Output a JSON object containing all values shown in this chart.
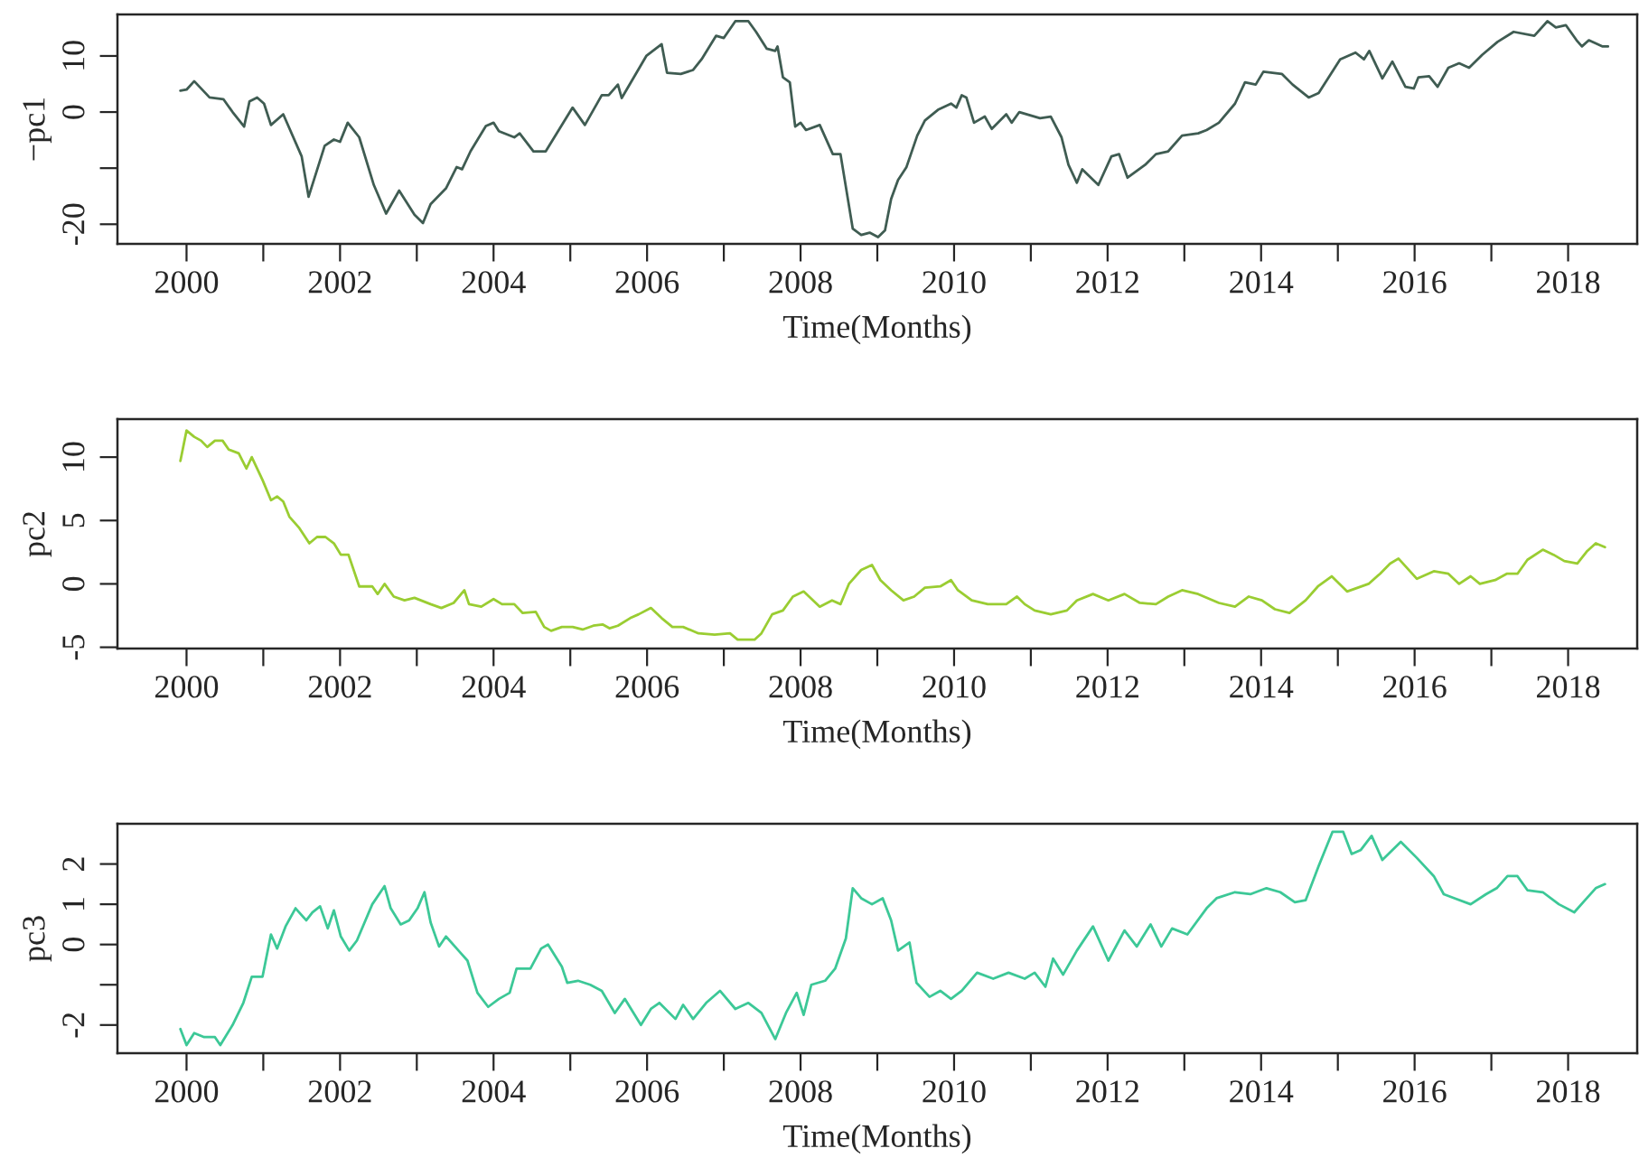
{
  "chart_data": [
    {
      "type": "line",
      "xlabel": "Time(Months)",
      "ylabel": "−pc1",
      "grid": false,
      "xlim": [
        1999.1,
        2018.9
      ],
      "ylim": [
        -23.5,
        17.4
      ],
      "xticks": [
        2000,
        {
          "value": 2001,
          "label": null
        },
        2002,
        {
          "value": 2003,
          "label": null
        },
        2004,
        {
          "value": 2005,
          "label": null
        },
        2006,
        {
          "value": 2007,
          "label": null
        },
        2008,
        {
          "value": 2009,
          "label": null
        },
        2010,
        {
          "value": 2011,
          "label": null
        },
        2012,
        {
          "value": 2013,
          "label": null
        },
        2014,
        {
          "value": 2015,
          "label": null
        },
        2016,
        {
          "value": 2017,
          "label": null
        },
        2018
      ],
      "yticks": [
        -20,
        {
          "value": -10,
          "label": null
        },
        0,
        10
      ],
      "series": [
        {
          "color": "#3f5c52",
          "x": [
            1999.92,
            2000.0,
            2000.1,
            2000.3,
            2000.48,
            2000.6,
            2000.75,
            2000.82,
            2000.92,
            2001.01,
            2001.1,
            2001.26,
            2001.5,
            2001.59,
            2001.8,
            2001.92,
            2002.0,
            2002.1,
            2002.25,
            2002.44,
            2002.6,
            2002.77,
            2002.97,
            2003.08,
            2003.18,
            2003.38,
            2003.52,
            2003.59,
            2003.7,
            2003.9,
            2004.0,
            2004.07,
            2004.27,
            2004.34,
            2004.52,
            2004.68,
            2005.03,
            2005.19,
            2005.41,
            2005.5,
            2005.62,
            2005.67,
            2005.99,
            2006.19,
            2006.26,
            2006.44,
            2006.6,
            2006.71,
            2006.9,
            2007.0,
            2007.15,
            2007.32,
            2007.42,
            2007.56,
            2007.67,
            2007.7,
            2007.77,
            2007.86,
            2007.93,
            2008.0,
            2008.07,
            2008.25,
            2008.42,
            2008.52,
            2008.68,
            2008.79,
            2008.9,
            2009.01,
            2009.1,
            2009.18,
            2009.27,
            2009.38,
            2009.52,
            2009.62,
            2009.79,
            2009.96,
            2010.03,
            2010.1,
            2010.16,
            2010.26,
            2010.4,
            2010.49,
            2010.68,
            2010.75,
            2010.85,
            2011.12,
            2011.26,
            2011.4,
            2011.49,
            2011.6,
            2011.67,
            2011.88,
            2012.05,
            2012.15,
            2012.26,
            2012.49,
            2012.63,
            2012.79,
            2012.97,
            2013.18,
            2013.29,
            2013.45,
            2013.66,
            2013.79,
            2013.93,
            2014.03,
            2014.27,
            2014.41,
            2014.62,
            2014.75,
            2015.03,
            2015.23,
            2015.34,
            2015.41,
            2015.58,
            2015.71,
            2015.88,
            2015.99,
            2016.05,
            2016.19,
            2016.3,
            2016.44,
            2016.58,
            2016.71,
            2016.88,
            2017.08,
            2017.29,
            2017.56,
            2017.73,
            2017.84,
            2017.97,
            2018.11,
            2018.18,
            2018.27,
            2018.45,
            2018.52
          ],
          "values": [
            3.8,
            4,
            5.5,
            2.6,
            2.3,
            0,
            -2.6,
            1.9,
            2.6,
            1.5,
            -2.3,
            -0.4,
            -7.9,
            -15.1,
            -6,
            -4.9,
            -5.3,
            -1.9,
            -4.5,
            -13,
            -18.1,
            -14,
            -18.3,
            -19.8,
            -16.4,
            -13.6,
            -9.8,
            -10.2,
            -7,
            -2.5,
            -1.9,
            -3.4,
            -4.5,
            -3.8,
            -7,
            -7,
            0.8,
            -2.3,
            3,
            3,
            4.9,
            2.5,
            10,
            12.1,
            7,
            6.8,
            7.5,
            9.4,
            13.6,
            13.2,
            16.2,
            16.2,
            14.3,
            11.3,
            10.9,
            11.7,
            6.2,
            5.3,
            -2.6,
            -1.9,
            -3.2,
            -2.3,
            -7.5,
            -7.5,
            -20.8,
            -21.9,
            -21.5,
            -22.3,
            -21.1,
            -15.5,
            -12.1,
            -9.8,
            -4.2,
            -1.5,
            0.4,
            1.5,
            0.8,
            3,
            2.6,
            -1.9,
            -0.8,
            -3,
            -0.4,
            -1.9,
            0,
            -1.1,
            -0.8,
            -4.5,
            -9.4,
            -12.6,
            -10.2,
            -13,
            -7.9,
            -7.5,
            -11.7,
            -9.4,
            -7.5,
            -7,
            -4.2,
            -3.8,
            -3.2,
            -1.9,
            1.5,
            5.3,
            4.9,
            7.2,
            6.8,
            4.9,
            2.6,
            3.4,
            9.4,
            10.6,
            9.4,
            10.9,
            6,
            9,
            4.5,
            4.2,
            6.2,
            6.4,
            4.5,
            7.9,
            8.7,
            7.9,
            10.2,
            12.5,
            14.3,
            13.6,
            16.2,
            15.1,
            15.5,
            12.8,
            11.7,
            12.8,
            11.7,
            11.7
          ]
        }
      ]
    },
    {
      "type": "line",
      "xlabel": "Time(Months)",
      "ylabel": "pc2",
      "grid": false,
      "xlim": [
        1999.1,
        2018.9
      ],
      "ylim": [
        -5.1,
        13
      ],
      "xticks": [
        2000,
        {
          "value": 2001,
          "label": null
        },
        2002,
        {
          "value": 2003,
          "label": null
        },
        2004,
        {
          "value": 2005,
          "label": null
        },
        2006,
        {
          "value": 2007,
          "label": null
        },
        2008,
        {
          "value": 2009,
          "label": null
        },
        2010,
        {
          "value": 2011,
          "label": null
        },
        2012,
        {
          "value": 2013,
          "label": null
        },
        2014,
        {
          "value": 2015,
          "label": null
        },
        2016,
        {
          "value": 2017,
          "label": null
        },
        2018
      ],
      "yticks": [
        -5,
        0,
        5,
        10
      ],
      "series": [
        {
          "color": "#9acd32",
          "x": [
            1999.92,
            2000.0,
            2000.1,
            2000.19,
            2000.27,
            2000.37,
            2000.47,
            2000.55,
            2000.68,
            2000.78,
            2000.85,
            2000.99,
            2001.1,
            2001.18,
            2001.26,
            2001.34,
            2001.47,
            2001.6,
            2001.7,
            2001.81,
            2001.92,
            2002.01,
            2002.11,
            2002.25,
            2002.42,
            2002.49,
            2002.58,
            2002.7,
            2002.84,
            2002.97,
            2003.18,
            2003.32,
            2003.48,
            2003.62,
            2003.68,
            2003.84,
            2004.0,
            2004.11,
            2004.27,
            2004.38,
            2004.55,
            2004.66,
            2004.75,
            2004.89,
            2005.03,
            2005.16,
            2005.3,
            2005.42,
            2005.51,
            2005.62,
            2005.78,
            2005.89,
            2006.05,
            2006.19,
            2006.33,
            2006.47,
            2006.67,
            2006.88,
            2007.08,
            2007.18,
            2007.4,
            2007.49,
            2007.63,
            2007.77,
            2007.9,
            2008.04,
            2008.25,
            2008.41,
            2008.52,
            2008.63,
            2008.79,
            2008.93,
            2009.04,
            2009.18,
            2009.34,
            2009.48,
            2009.62,
            2009.82,
            2009.96,
            2010.05,
            2010.23,
            2010.44,
            2010.55,
            2010.68,
            2010.82,
            2010.92,
            2011.05,
            2011.26,
            2011.47,
            2011.6,
            2011.81,
            2012.01,
            2012.22,
            2012.42,
            2012.63,
            2012.79,
            2012.97,
            2013.18,
            2013.45,
            2013.66,
            2013.84,
            2014.01,
            2014.18,
            2014.37,
            2014.58,
            2014.74,
            2014.92,
            2015.12,
            2015.4,
            2015.55,
            2015.68,
            2015.79,
            2016.03,
            2016.25,
            2016.44,
            2016.58,
            2016.73,
            2016.85,
            2017.05,
            2017.2,
            2017.34,
            2017.47,
            2017.67,
            2017.81,
            2017.95,
            2018.12,
            2018.25,
            2018.36,
            2018.48
          ],
          "values": [
            9.7,
            12.1,
            11.6,
            11.3,
            10.8,
            11.3,
            11.3,
            10.6,
            10.3,
            9.1,
            10,
            8.2,
            6.6,
            6.9,
            6.5,
            5.3,
            4.4,
            3.2,
            3.7,
            3.7,
            3.2,
            2.3,
            2.3,
            -0.2,
            -0.2,
            -0.8,
            0,
            -1,
            -1.3,
            -1.1,
            -1.6,
            -1.9,
            -1.5,
            -0.5,
            -1.6,
            -1.8,
            -1.2,
            -1.6,
            -1.6,
            -2.3,
            -2.2,
            -3.4,
            -3.7,
            -3.4,
            -3.4,
            -3.6,
            -3.3,
            -3.2,
            -3.5,
            -3.3,
            -2.7,
            -2.4,
            -1.9,
            -2.7,
            -3.4,
            -3.4,
            -3.9,
            -4,
            -3.9,
            -4.4,
            -4.4,
            -3.9,
            -2.4,
            -2.1,
            -1,
            -0.6,
            -1.8,
            -1.3,
            -1.6,
            0,
            1.1,
            1.5,
            0.3,
            -0.5,
            -1.3,
            -1,
            -0.3,
            -0.2,
            0.3,
            -0.5,
            -1.3,
            -1.6,
            -1.6,
            -1.6,
            -1,
            -1.6,
            -2.1,
            -2.4,
            -2.1,
            -1.3,
            -0.8,
            -1.3,
            -0.8,
            -1.5,
            -1.6,
            -1,
            -0.5,
            -0.8,
            -1.5,
            -1.8,
            -1,
            -1.3,
            -2,
            -2.3,
            -1.3,
            -0.2,
            0.6,
            -0.6,
            0,
            0.8,
            1.6,
            2,
            0.4,
            1,
            0.8,
            0,
            0.6,
            0,
            0.3,
            0.8,
            0.8,
            1.9,
            2.7,
            2.3,
            1.8,
            1.6,
            2.6,
            3.2,
            2.9
          ]
        }
      ]
    },
    {
      "type": "line",
      "xlabel": "Time(Months)",
      "ylabel": "pc3",
      "grid": false,
      "xlim": [
        1999.1,
        2018.9
      ],
      "ylim": [
        -2.7,
        3.0
      ],
      "xticks": [
        2000,
        {
          "value": 2001,
          "label": null
        },
        2002,
        {
          "value": 2003,
          "label": null
        },
        2004,
        {
          "value": 2005,
          "label": null
        },
        2006,
        {
          "value": 2007,
          "label": null
        },
        2008,
        {
          "value": 2009,
          "label": null
        },
        2010,
        {
          "value": 2011,
          "label": null
        },
        2012,
        {
          "value": 2013,
          "label": null
        },
        2014,
        {
          "value": 2015,
          "label": null
        },
        2016,
        {
          "value": 2017,
          "label": null
        },
        2018
      ],
      "yticks": [
        -2,
        {
          "value": -1,
          "label": null
        },
        0,
        1,
        2
      ],
      "series": [
        {
          "color": "#3cc897",
          "x": [
            1999.92,
            2000.0,
            2000.1,
            2000.23,
            2000.37,
            2000.44,
            2000.6,
            2000.74,
            2000.85,
            2000.99,
            2001.1,
            2001.18,
            2001.29,
            2001.42,
            2001.56,
            2001.64,
            2001.74,
            2001.84,
            2001.92,
            2002.01,
            2002.12,
            2002.22,
            2002.42,
            2002.58,
            2002.66,
            2002.79,
            2002.9,
            2003.01,
            2003.1,
            2003.18,
            2003.29,
            2003.38,
            2003.52,
            2003.66,
            2003.79,
            2003.93,
            2004.07,
            2004.21,
            2004.3,
            2004.48,
            2004.62,
            2004.71,
            2004.89,
            2004.96,
            2005.1,
            2005.26,
            2005.41,
            2005.58,
            2005.71,
            2005.92,
            2006.05,
            2006.16,
            2006.37,
            2006.47,
            2006.6,
            2006.77,
            2006.95,
            2007.15,
            2007.32,
            2007.49,
            2007.67,
            2007.81,
            2007.95,
            2008.04,
            2008.14,
            2008.32,
            2008.45,
            2008.59,
            2008.68,
            2008.79,
            2008.93,
            2009.07,
            2009.18,
            2009.27,
            2009.42,
            2009.51,
            2009.68,
            2009.82,
            2009.96,
            2010.1,
            2010.3,
            2010.51,
            2010.71,
            2010.92,
            2011.05,
            2011.19,
            2011.29,
            2011.42,
            2011.6,
            2011.81,
            2012.01,
            2012.22,
            2012.38,
            2012.56,
            2012.7,
            2012.84,
            2013.04,
            2013.29,
            2013.42,
            2013.66,
            2013.86,
            2014.07,
            2014.25,
            2014.44,
            2014.58,
            2014.75,
            2014.93,
            2015.07,
            2015.18,
            2015.3,
            2015.44,
            2015.58,
            2015.82,
            2016.03,
            2016.25,
            2016.38,
            2016.52,
            2016.73,
            2016.93,
            2017.07,
            2017.21,
            2017.34,
            2017.47,
            2017.67,
            2017.88,
            2018.08,
            2018.22,
            2018.36,
            2018.48
          ],
          "values": [
            -2.1,
            -2.5,
            -2.2,
            -2.3,
            -2.3,
            -2.5,
            -2,
            -1.45,
            -0.8,
            -0.8,
            0.25,
            -0.1,
            0.45,
            0.9,
            0.6,
            0.8,
            0.95,
            0.4,
            0.85,
            0.2,
            -0.15,
            0.1,
            1,
            1.45,
            0.9,
            0.5,
            0.6,
            0.9,
            1.3,
            0.55,
            -0.05,
            0.2,
            -0.1,
            -0.4,
            -1.2,
            -1.55,
            -1.35,
            -1.2,
            -0.6,
            -0.6,
            -0.1,
            0,
            -0.55,
            -0.95,
            -0.9,
            -1,
            -1.15,
            -1.7,
            -1.35,
            -2,
            -1.6,
            -1.45,
            -1.85,
            -1.5,
            -1.85,
            -1.45,
            -1.15,
            -1.6,
            -1.45,
            -1.7,
            -2.35,
            -1.7,
            -1.2,
            -1.75,
            -1,
            -0.9,
            -0.6,
            0.15,
            1.4,
            1.15,
            1,
            1.15,
            0.6,
            -0.15,
            0.05,
            -0.95,
            -1.3,
            -1.15,
            -1.35,
            -1.15,
            -0.7,
            -0.85,
            -0.7,
            -0.85,
            -0.7,
            -1.05,
            -0.35,
            -0.75,
            -0.15,
            0.45,
            -0.4,
            0.35,
            -0.05,
            0.5,
            -0.05,
            0.4,
            0.25,
            0.9,
            1.15,
            1.3,
            1.25,
            1.4,
            1.3,
            1.05,
            1.1,
            1.95,
            2.8,
            2.8,
            2.25,
            2.35,
            2.7,
            2.1,
            2.55,
            2.15,
            1.7,
            1.25,
            1.15,
            1,
            1.25,
            1.4,
            1.7,
            1.7,
            1.35,
            1.3,
            1,
            0.8,
            1.1,
            1.4,
            1.5
          ]
        }
      ]
    }
  ]
}
